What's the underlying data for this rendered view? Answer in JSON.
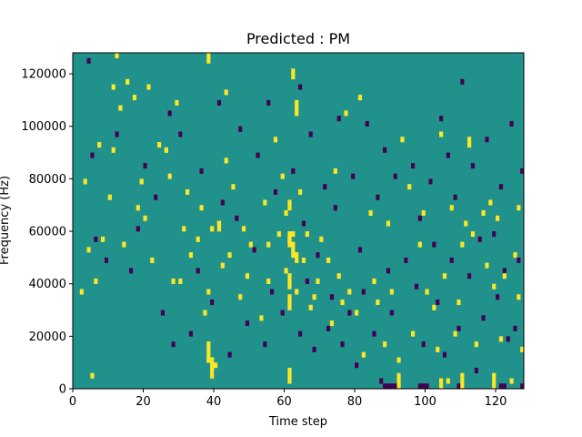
{
  "chart_data": {
    "type": "heatmap",
    "title": "Predicted : PM",
    "xlabel": "Time step",
    "ylabel": "Frequency (Hz)",
    "xlim": [
      0,
      128
    ],
    "ylim": [
      0,
      128000
    ],
    "x_ticks": [
      0,
      20,
      40,
      60,
      80,
      100,
      120
    ],
    "y_ticks": [
      0,
      20000,
      40000,
      60000,
      80000,
      100000,
      120000
    ],
    "x_tick_labels": [
      "0",
      "20",
      "40",
      "60",
      "80",
      "100",
      "120"
    ],
    "y_tick_labels": [
      "0",
      "20000",
      "40000",
      "60000",
      "80000",
      "100000",
      "120000"
    ],
    "grid": false,
    "n_time_steps": 128,
    "n_freq_bins": 64,
    "freq_bin_width": 2000,
    "colormap": "viridis",
    "colors": {
      "background": "#21918c",
      "high": "#fde725",
      "low": "#440154"
    },
    "cells": {
      "high": [
        [
          2,
          18
        ],
        [
          4,
          26
        ],
        [
          5,
          2
        ],
        [
          6,
          20
        ],
        [
          7,
          46
        ],
        [
          3,
          39
        ],
        [
          8,
          28
        ],
        [
          10,
          36
        ],
        [
          11,
          57
        ],
        [
          12,
          63
        ],
        [
          11,
          45
        ],
        [
          14,
          27
        ],
        [
          13,
          53
        ],
        [
          15,
          58
        ],
        [
          18,
          34
        ],
        [
          17,
          55
        ],
        [
          19,
          39
        ],
        [
          20,
          32
        ],
        [
          21,
          57
        ],
        [
          22,
          24
        ],
        [
          24,
          46
        ],
        [
          26,
          45
        ],
        [
          27,
          40
        ],
        [
          28,
          20
        ],
        [
          29,
          54
        ],
        [
          30,
          20
        ],
        [
          32,
          37
        ],
        [
          31,
          30
        ],
        [
          33,
          25
        ],
        [
          35,
          28
        ],
        [
          36,
          34
        ],
        [
          37,
          14
        ],
        [
          38,
          18
        ],
        [
          38,
          5
        ],
        [
          39,
          30
        ],
        [
          40,
          4
        ],
        [
          41,
          31
        ],
        [
          42,
          23
        ],
        [
          43,
          56
        ],
        [
          43,
          43
        ],
        [
          44,
          25
        ],
        [
          45,
          38
        ],
        [
          47,
          17
        ],
        [
          48,
          30
        ],
        [
          49,
          21
        ],
        [
          50,
          27
        ],
        [
          53,
          13
        ],
        [
          54,
          35
        ],
        [
          55,
          20
        ],
        [
          55,
          27
        ],
        [
          57,
          47
        ],
        [
          58,
          29
        ],
        [
          59,
          40
        ],
        [
          60,
          33
        ],
        [
          60,
          22
        ],
        [
          61,
          28
        ],
        [
          62,
          29
        ],
        [
          63,
          18
        ],
        [
          64,
          37
        ],
        [
          65,
          24
        ],
        [
          66,
          29
        ],
        [
          67,
          15
        ],
        [
          68,
          17
        ],
        [
          69,
          20
        ],
        [
          70,
          28
        ],
        [
          72,
          24
        ],
        [
          73,
          12
        ],
        [
          74,
          41
        ],
        [
          75,
          21
        ],
        [
          76,
          16
        ],
        [
          77,
          52
        ],
        [
          78,
          18
        ],
        [
          80,
          14
        ],
        [
          81,
          55
        ],
        [
          82,
          6
        ],
        [
          84,
          33
        ],
        [
          85,
          20
        ],
        [
          86,
          16
        ],
        [
          88,
          8
        ],
        [
          89,
          31
        ],
        [
          90,
          18
        ],
        [
          92,
          5
        ],
        [
          93,
          47
        ],
        [
          95,
          38
        ],
        [
          96,
          10
        ],
        [
          98,
          27
        ],
        [
          99,
          33
        ],
        [
          100,
          18
        ],
        [
          102,
          15
        ],
        [
          103,
          7
        ],
        [
          104,
          48
        ],
        [
          105,
          21
        ],
        [
          106,
          1
        ],
        [
          107,
          34
        ],
        [
          108,
          10
        ],
        [
          109,
          16
        ],
        [
          110,
          27
        ],
        [
          111,
          31
        ],
        [
          113,
          29
        ],
        [
          114,
          8
        ],
        [
          116,
          33
        ],
        [
          117,
          23
        ],
        [
          118,
          35
        ],
        [
          119,
          19
        ],
        [
          120,
          32
        ],
        [
          121,
          9
        ],
        [
          122,
          21
        ],
        [
          124,
          1
        ],
        [
          125,
          25
        ],
        [
          126,
          17
        ],
        [
          126,
          34
        ],
        [
          127,
          7
        ]
      ],
      "low": [
        [
          4,
          62
        ],
        [
          5,
          44
        ],
        [
          6,
          28
        ],
        [
          9,
          24
        ],
        [
          12,
          48
        ],
        [
          16,
          22
        ],
        [
          18,
          30
        ],
        [
          20,
          42
        ],
        [
          23,
          36
        ],
        [
          25,
          14
        ],
        [
          27,
          52
        ],
        [
          28,
          8
        ],
        [
          30,
          48
        ],
        [
          33,
          10
        ],
        [
          35,
          22
        ],
        [
          36,
          41
        ],
        [
          39,
          16
        ],
        [
          41,
          54
        ],
        [
          42,
          35
        ],
        [
          44,
          6
        ],
        [
          46,
          32
        ],
        [
          47,
          49
        ],
        [
          49,
          12
        ],
        [
          51,
          26
        ],
        [
          52,
          44
        ],
        [
          54,
          8
        ],
        [
          55,
          54
        ],
        [
          56,
          18
        ],
        [
          57,
          37
        ],
        [
          59,
          14
        ],
        [
          62,
          41
        ],
        [
          64,
          10
        ],
        [
          64,
          57
        ],
        [
          65,
          31
        ],
        [
          66,
          20
        ],
        [
          67,
          48
        ],
        [
          68,
          7
        ],
        [
          69,
          25
        ],
        [
          71,
          38
        ],
        [
          72,
          11
        ],
        [
          73,
          17
        ],
        [
          74,
          34
        ],
        [
          75,
          51
        ],
        [
          76,
          8
        ],
        [
          78,
          14
        ],
        [
          79,
          40
        ],
        [
          80,
          4
        ],
        [
          81,
          26
        ],
        [
          82,
          18
        ],
        [
          83,
          50
        ],
        [
          85,
          10
        ],
        [
          86,
          36
        ],
        [
          87,
          1
        ],
        [
          88,
          45
        ],
        [
          89,
          22
        ],
        [
          90,
          14
        ],
        [
          91,
          40
        ],
        [
          92,
          2
        ],
        [
          94,
          24
        ],
        [
          96,
          42
        ],
        [
          97,
          19
        ],
        [
          98,
          32
        ],
        [
          99,
          8
        ],
        [
          101,
          39
        ],
        [
          102,
          27
        ],
        [
          103,
          16
        ],
        [
          104,
          51
        ],
        [
          105,
          6
        ],
        [
          106,
          44
        ],
        [
          107,
          24
        ],
        [
          108,
          36
        ],
        [
          109,
          11
        ],
        [
          110,
          58
        ],
        [
          112,
          21
        ],
        [
          113,
          42
        ],
        [
          114,
          3
        ],
        [
          115,
          28
        ],
        [
          116,
          13
        ],
        [
          117,
          47
        ],
        [
          119,
          29
        ],
        [
          120,
          17
        ],
        [
          121,
          38
        ],
        [
          122,
          22
        ],
        [
          123,
          9
        ],
        [
          124,
          50
        ],
        [
          125,
          11
        ],
        [
          126,
          24
        ],
        [
          127,
          41
        ],
        [
          88,
          0
        ],
        [
          89,
          0
        ],
        [
          90,
          0
        ],
        [
          91,
          0
        ],
        [
          98,
          0
        ],
        [
          99,
          0
        ],
        [
          100,
          0
        ],
        [
          109,
          0
        ],
        [
          110,
          0
        ],
        [
          121,
          0
        ],
        [
          122,
          0
        ],
        [
          127,
          0
        ]
      ],
      "high_blocks": [
        [
          61,
          1,
          3
        ],
        [
          61,
          15,
          3
        ],
        [
          61,
          27,
          3
        ],
        [
          61,
          34,
          2
        ],
        [
          62,
          25,
          3
        ],
        [
          63,
          24,
          2
        ],
        [
          61,
          19,
          3
        ],
        [
          38,
          5,
          4
        ],
        [
          39,
          2,
          4
        ],
        [
          92,
          0,
          3
        ],
        [
          110,
          0,
          3
        ],
        [
          119,
          0,
          3
        ],
        [
          104,
          0,
          2
        ],
        [
          63,
          52,
          3
        ],
        [
          38,
          62,
          2
        ],
        [
          41,
          30,
          2
        ],
        [
          62,
          59,
          2
        ],
        [
          112,
          46,
          2
        ]
      ]
    }
  }
}
